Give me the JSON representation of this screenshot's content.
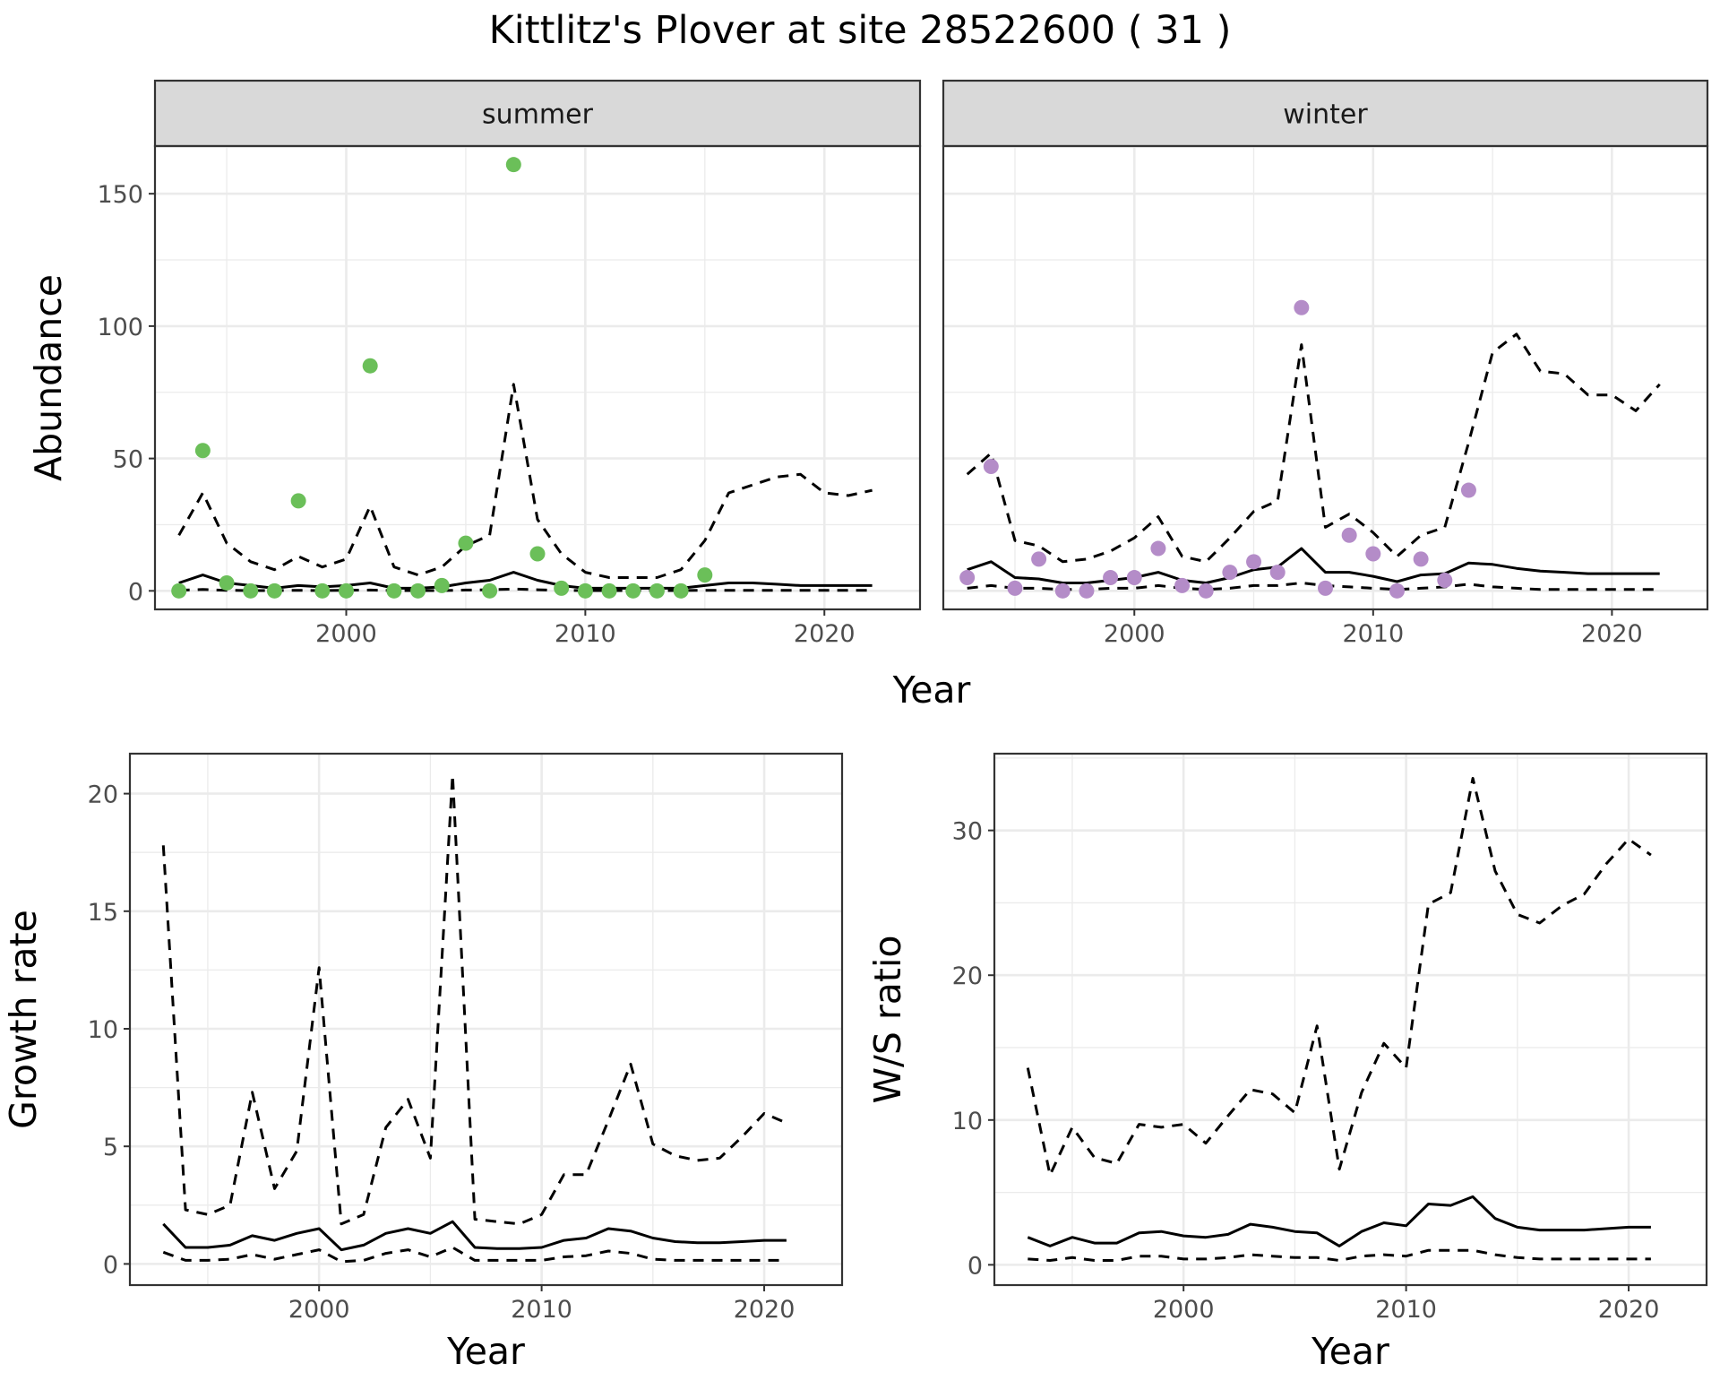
{
  "title": "Kittlitz's Plover at site 28522600 ( 31 )",
  "colors": {
    "summer_points": "#6BBF59",
    "winter_points": "#B48CC8",
    "lines": "#000000",
    "grid": "#EBEBEB",
    "strip": "#D9D9D9"
  },
  "chart_data": [
    {
      "type": "scatter",
      "facet": "summer",
      "xlabel": "Year",
      "ylabel": "Abundance",
      "xlim": [
        1992,
        2024
      ],
      "ylim": [
        -7,
        168
      ],
      "x_ticks": [
        2000,
        2010,
        2020
      ],
      "y_ticks": [
        0,
        50,
        100,
        150
      ],
      "grid": true,
      "points": {
        "x": [
          1993,
          1994,
          1995,
          1996,
          1997,
          1998,
          1999,
          2000,
          2001,
          2002,
          2003,
          2004,
          2005,
          2006,
          2007,
          2008,
          2009,
          2010,
          2011,
          2012,
          2013,
          2014,
          2015
        ],
        "y": [
          0,
          53,
          3,
          0,
          0,
          34,
          0,
          0,
          85,
          0,
          0,
          2,
          18,
          0,
          161,
          14,
          1,
          0,
          0,
          0,
          0,
          0,
          6
        ]
      },
      "series": [
        {
          "x": [
            1993,
            1994,
            1995,
            1996,
            1997,
            1998,
            1999,
            2000,
            2001,
            2002,
            2003,
            2004,
            2005,
            2006,
            2007,
            2008,
            2009,
            2010,
            2011,
            2012,
            2013,
            2014,
            2015,
            2016,
            2017,
            2018,
            2019,
            2020,
            2021,
            2022
          ],
          "y": [
            3,
            6,
            3,
            2,
            1,
            2,
            1.5,
            2,
            3,
            1,
            1,
            1.5,
            3,
            4,
            7,
            4,
            2,
            1,
            1,
            1,
            1,
            1,
            2,
            3,
            3,
            2.5,
            2,
            2,
            2,
            2
          ],
          "style": "solid"
        },
        {
          "x": [
            1993,
            1994,
            1995,
            1996,
            1997,
            1998,
            1999,
            2000,
            2001,
            2002,
            2003,
            2004,
            2005,
            2006,
            2007,
            2008,
            2009,
            2010,
            2011,
            2012,
            2013,
            2014,
            2015,
            2016,
            2017,
            2018,
            2019,
            2020,
            2021,
            2022
          ],
          "y": [
            21,
            37,
            18,
            11,
            8,
            13,
            9,
            12,
            32,
            9,
            6,
            9,
            17,
            21,
            78,
            27,
            14,
            7,
            5,
            5,
            5,
            8,
            19,
            37,
            40,
            43,
            44,
            37,
            36,
            38
          ],
          "style": "dashed"
        },
        {
          "x": [
            1993,
            1994,
            1995,
            1996,
            1997,
            1998,
            1999,
            2000,
            2001,
            2002,
            2003,
            2004,
            2005,
            2006,
            2007,
            2008,
            2009,
            2010,
            2011,
            2012,
            2013,
            2014,
            2015,
            2016,
            2017,
            2018,
            2019,
            2020,
            2021,
            2022
          ],
          "y": [
            0.2,
            0.5,
            0.2,
            0.1,
            0.1,
            0.2,
            0.1,
            0.2,
            0.3,
            0.1,
            0.1,
            0.1,
            0.3,
            0.4,
            0.7,
            0.4,
            0.2,
            0.1,
            0.1,
            0.1,
            0.1,
            0.1,
            0.2,
            0.2,
            0.2,
            0.2,
            0.2,
            0.2,
            0.2,
            0.2
          ],
          "style": "dashed"
        }
      ]
    },
    {
      "type": "scatter",
      "facet": "winter",
      "xlabel": "Year",
      "ylabel": "Abundance",
      "xlim": [
        1992,
        2024
      ],
      "ylim": [
        -7,
        168
      ],
      "x_ticks": [
        2000,
        2010,
        2020
      ],
      "y_ticks": [
        0,
        50,
        100,
        150
      ],
      "grid": true,
      "points": {
        "x": [
          1993,
          1994,
          1995,
          1996,
          1997,
          1998,
          1999,
          2000,
          2001,
          2002,
          2003,
          2004,
          2005,
          2006,
          2007,
          2008,
          2009,
          2010,
          2011,
          2012,
          2013,
          2014
        ],
        "y": [
          5,
          47,
          1,
          12,
          0,
          0,
          5,
          5,
          16,
          2,
          0,
          7,
          11,
          7,
          107,
          1,
          21,
          14,
          0,
          12,
          4,
          38
        ]
      },
      "series": [
        {
          "x": [
            1993,
            1994,
            1995,
            1996,
            1997,
            1998,
            1999,
            2000,
            2001,
            2002,
            2003,
            2004,
            2005,
            2006,
            2007,
            2008,
            2009,
            2010,
            2011,
            2012,
            2013,
            2014,
            2015,
            2016,
            2017,
            2018,
            2019,
            2020,
            2021,
            2022
          ],
          "y": [
            8,
            11,
            5,
            4.5,
            3,
            3,
            4,
            5,
            7,
            4,
            3,
            5,
            8,
            9,
            16,
            7,
            7,
            5.5,
            3.5,
            6,
            6.5,
            10.5,
            10,
            8.5,
            7.5,
            7,
            6.5,
            6.5,
            6.5,
            6.5
          ],
          "style": "solid"
        },
        {
          "x": [
            1993,
            1994,
            1995,
            1996,
            1997,
            1998,
            1999,
            2000,
            2001,
            2002,
            2003,
            2004,
            2005,
            2006,
            2007,
            2008,
            2009,
            2010,
            2011,
            2012,
            2013,
            2014,
            2015,
            2016,
            2017,
            2018,
            2019,
            2020,
            2021,
            2022
          ],
          "y": [
            44,
            52,
            19,
            17,
            11,
            12,
            15,
            20,
            28,
            13,
            11,
            20,
            30,
            34,
            93,
            24,
            29,
            22,
            13,
            21,
            24,
            56,
            90,
            97,
            83,
            82,
            74,
            74,
            68,
            78
          ],
          "style": "dashed"
        },
        {
          "x": [
            1993,
            1994,
            1995,
            1996,
            1997,
            1998,
            1999,
            2000,
            2001,
            2002,
            2003,
            2004,
            2005,
            2006,
            2007,
            2008,
            2009,
            2010,
            2011,
            2012,
            2013,
            2014,
            2015,
            2016,
            2017,
            2018,
            2019,
            2020,
            2021,
            2022
          ],
          "y": [
            1,
            2,
            1,
            1,
            0.5,
            0.5,
            1,
            1,
            2,
            1,
            0.5,
            1,
            2,
            2,
            3,
            2,
            1.5,
            1,
            0.5,
            1,
            1.5,
            2.5,
            1.5,
            1,
            0.5,
            0.5,
            0.5,
            0.5,
            0.5,
            0.5
          ],
          "style": "dashed"
        }
      ]
    },
    {
      "type": "line",
      "xlabel": "Year",
      "ylabel": "Growth rate",
      "xlim": [
        1991.5,
        2023.5
      ],
      "ylim": [
        -0.9,
        21.7
      ],
      "x_ticks": [
        2000,
        2010,
        2020
      ],
      "y_ticks": [
        0,
        5,
        10,
        15,
        20
      ],
      "grid": true,
      "series": [
        {
          "x": [
            1993,
            1994,
            1995,
            1996,
            1997,
            1998,
            1999,
            2000,
            2001,
            2002,
            2003,
            2004,
            2005,
            2006,
            2007,
            2008,
            2009,
            2010,
            2011,
            2012,
            2013,
            2014,
            2015,
            2016,
            2017,
            2018,
            2019,
            2020,
            2021
          ],
          "y": [
            1.7,
            0.7,
            0.7,
            0.8,
            1.2,
            1.0,
            1.3,
            1.5,
            0.6,
            0.8,
            1.3,
            1.5,
            1.3,
            1.8,
            0.7,
            0.65,
            0.65,
            0.7,
            1.0,
            1.1,
            1.5,
            1.4,
            1.1,
            0.95,
            0.9,
            0.9,
            0.95,
            1.0,
            1.0
          ],
          "style": "solid"
        },
        {
          "x": [
            1993,
            1994,
            1995,
            1996,
            1997,
            1998,
            1999,
            2000,
            2001,
            2002,
            2003,
            2004,
            2005,
            2006,
            2007,
            2008,
            2009,
            2010,
            2011,
            2012,
            2013,
            2014,
            2015,
            2016,
            2017,
            2018,
            2019,
            2020,
            2021
          ],
          "y": [
            17.8,
            2.3,
            2.1,
            2.5,
            7.3,
            3.2,
            4.8,
            12.6,
            1.7,
            2.1,
            5.8,
            7.0,
            4.5,
            20.8,
            1.9,
            1.8,
            1.7,
            2.1,
            3.8,
            3.8,
            6.1,
            8.5,
            5.1,
            4.6,
            4.4,
            4.5,
            5.4,
            6.4,
            6.0
          ],
          "style": "dashed"
        },
        {
          "x": [
            1993,
            1994,
            1995,
            1996,
            1997,
            1998,
            1999,
            2000,
            2001,
            2002,
            2003,
            2004,
            2005,
            2006,
            2007,
            2008,
            2009,
            2010,
            2011,
            2012,
            2013,
            2014,
            2015,
            2016,
            2017,
            2018,
            2019,
            2020,
            2021
          ],
          "y": [
            0.5,
            0.15,
            0.15,
            0.2,
            0.4,
            0.2,
            0.4,
            0.6,
            0.1,
            0.15,
            0.45,
            0.6,
            0.3,
            0.7,
            0.15,
            0.15,
            0.15,
            0.15,
            0.3,
            0.35,
            0.55,
            0.45,
            0.2,
            0.15,
            0.15,
            0.15,
            0.15,
            0.15,
            0.15
          ],
          "style": "dashed"
        }
      ]
    },
    {
      "type": "line",
      "xlabel": "Year",
      "ylabel": "W/S ratio",
      "xlim": [
        1991.5,
        2023.5
      ],
      "ylim": [
        -1.4,
        35.3
      ],
      "x_ticks": [
        2000,
        2010,
        2020
      ],
      "y_ticks": [
        0,
        10,
        20,
        30
      ],
      "grid": true,
      "series": [
        {
          "x": [
            1993,
            1994,
            1995,
            1996,
            1997,
            1998,
            1999,
            2000,
            2001,
            2002,
            2003,
            2004,
            2005,
            2006,
            2007,
            2008,
            2009,
            2010,
            2011,
            2012,
            2013,
            2014,
            2015,
            2016,
            2017,
            2018,
            2019,
            2020,
            2021
          ],
          "y": [
            1.9,
            1.3,
            1.9,
            1.5,
            1.5,
            2.2,
            2.3,
            2.0,
            1.9,
            2.1,
            2.8,
            2.6,
            2.3,
            2.2,
            1.3,
            2.3,
            2.9,
            2.7,
            4.2,
            4.1,
            4.7,
            3.2,
            2.6,
            2.4,
            2.4,
            2.4,
            2.5,
            2.6,
            2.6
          ],
          "style": "solid"
        },
        {
          "x": [
            1993,
            1994,
            1995,
            1996,
            1997,
            1998,
            1999,
            2000,
            2001,
            2002,
            2003,
            2004,
            2005,
            2006,
            2007,
            2008,
            2009,
            2010,
            2011,
            2012,
            2013,
            2014,
            2015,
            2016,
            2017,
            2018,
            2019,
            2020,
            2021
          ],
          "y": [
            13.6,
            6.2,
            9.5,
            7.4,
            7.0,
            9.7,
            9.5,
            9.7,
            8.4,
            10.3,
            12.1,
            11.8,
            10.5,
            16.5,
            6.6,
            11.9,
            15.3,
            13.6,
            24.9,
            25.7,
            33.6,
            27.2,
            24.2,
            23.6,
            24.8,
            25.6,
            27.7,
            29.4,
            28.3
          ],
          "style": "dashed"
        },
        {
          "x": [
            1993,
            1994,
            1995,
            1996,
            1997,
            1998,
            1999,
            2000,
            2001,
            2002,
            2003,
            2004,
            2005,
            2006,
            2007,
            2008,
            2009,
            2010,
            2011,
            2012,
            2013,
            2014,
            2015,
            2016,
            2017,
            2018,
            2019,
            2020,
            2021
          ],
          "y": [
            0.4,
            0.3,
            0.5,
            0.3,
            0.3,
            0.6,
            0.6,
            0.4,
            0.4,
            0.5,
            0.7,
            0.6,
            0.5,
            0.5,
            0.3,
            0.6,
            0.7,
            0.6,
            1.0,
            1.0,
            1.0,
            0.7,
            0.5,
            0.4,
            0.4,
            0.4,
            0.4,
            0.4,
            0.4
          ],
          "style": "dashed"
        }
      ]
    }
  ]
}
